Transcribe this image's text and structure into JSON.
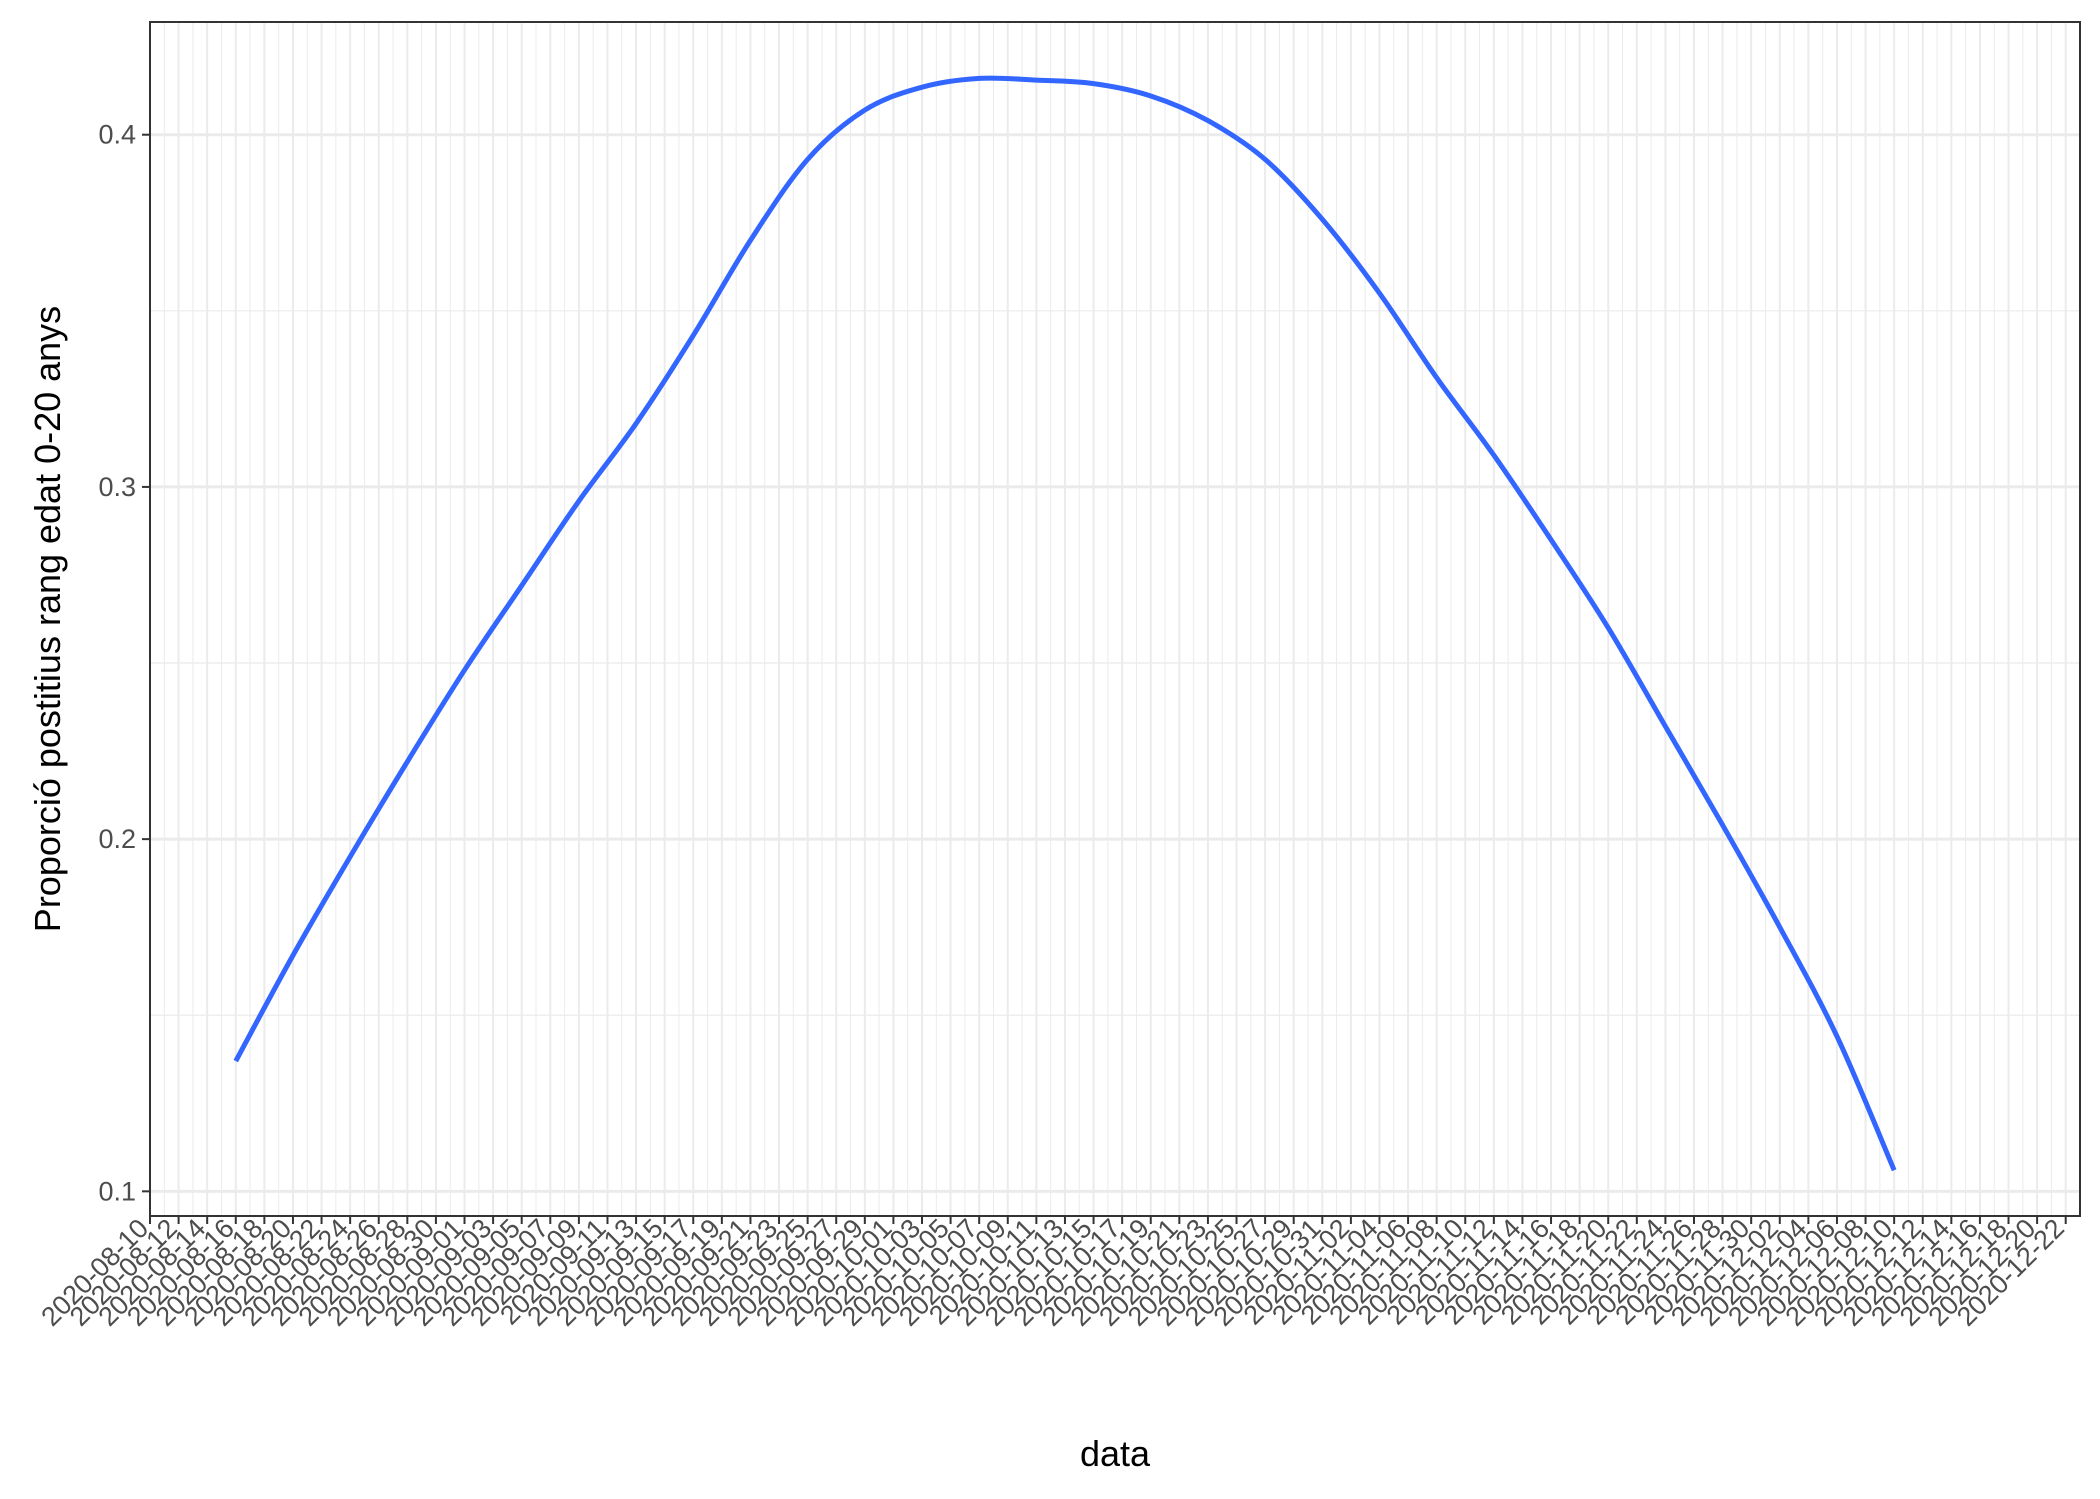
{
  "chart_data": {
    "type": "line",
    "title": "",
    "xlabel": "data",
    "ylabel": "Proporció postitius rang edat 0-20 anys",
    "xlim": [
      "2020-08-10",
      "2020-12-23"
    ],
    "ylim": [
      0.093,
      0.432
    ],
    "y_ticks": [
      0.1,
      0.2,
      0.3,
      0.4
    ],
    "y_tick_labels": [
      "0.1",
      "0.2",
      "0.3",
      "0.4"
    ],
    "x_tick_labels": [
      "2020-08-10",
      "2020-08-12",
      "2020-08-14",
      "2020-08-16",
      "2020-08-18",
      "2020-08-20",
      "2020-08-22",
      "2020-08-24",
      "2020-08-26",
      "2020-08-28",
      "2020-08-30",
      "2020-09-01",
      "2020-09-03",
      "2020-09-05",
      "2020-09-07",
      "2020-09-09",
      "2020-09-11",
      "2020-09-13",
      "2020-09-15",
      "2020-09-17",
      "2020-09-19",
      "2020-09-21",
      "2020-09-23",
      "2020-09-25",
      "2020-09-27",
      "2020-09-29",
      "2020-10-01",
      "2020-10-03",
      "2020-10-05",
      "2020-10-07",
      "2020-10-09",
      "2020-10-11",
      "2020-10-13",
      "2020-10-15",
      "2020-10-17",
      "2020-10-19",
      "2020-10-21",
      "2020-10-23",
      "2020-10-25",
      "2020-10-27",
      "2020-10-29",
      "2020-10-31",
      "2020-11-02",
      "2020-11-04",
      "2020-11-06",
      "2020-11-08",
      "2020-11-10",
      "2020-11-12",
      "2020-11-14",
      "2020-11-16",
      "2020-11-18",
      "2020-11-20",
      "2020-11-22",
      "2020-11-24",
      "2020-11-26",
      "2020-11-28",
      "2020-11-30",
      "2020-12-02",
      "2020-12-04",
      "2020-12-06",
      "2020-12-08",
      "2020-12-10",
      "2020-12-12",
      "2020-12-14",
      "2020-12-16",
      "2020-12-18",
      "2020-12-20",
      "2020-12-22"
    ],
    "grid": true,
    "series": [
      {
        "color": "#3366FF",
        "points": [
          {
            "x": "2020-08-16",
            "y": 0.137
          },
          {
            "x": "2020-08-20",
            "y": 0.167
          },
          {
            "x": "2020-08-24",
            "y": 0.195
          },
          {
            "x": "2020-08-28",
            "y": 0.222
          },
          {
            "x": "2020-09-01",
            "y": 0.248
          },
          {
            "x": "2020-09-05",
            "y": 0.272
          },
          {
            "x": "2020-09-09",
            "y": 0.296
          },
          {
            "x": "2020-09-13",
            "y": 0.318
          },
          {
            "x": "2020-09-17",
            "y": 0.343
          },
          {
            "x": "2020-09-21",
            "y": 0.37
          },
          {
            "x": "2020-09-25",
            "y": 0.393
          },
          {
            "x": "2020-09-29",
            "y": 0.407
          },
          {
            "x": "2020-10-03",
            "y": 0.4135
          },
          {
            "x": "2020-10-07",
            "y": 0.416
          },
          {
            "x": "2020-10-11",
            "y": 0.4155
          },
          {
            "x": "2020-10-15",
            "y": 0.4145
          },
          {
            "x": "2020-10-19",
            "y": 0.411
          },
          {
            "x": "2020-10-23",
            "y": 0.404
          },
          {
            "x": "2020-10-27",
            "y": 0.393
          },
          {
            "x": "2020-10-31",
            "y": 0.376
          },
          {
            "x": "2020-11-04",
            "y": 0.355
          },
          {
            "x": "2020-11-08",
            "y": 0.331
          },
          {
            "x": "2020-11-12",
            "y": 0.309
          },
          {
            "x": "2020-11-16",
            "y": 0.285
          },
          {
            "x": "2020-11-20",
            "y": 0.26
          },
          {
            "x": "2020-11-24",
            "y": 0.232
          },
          {
            "x": "2020-11-28",
            "y": 0.204
          },
          {
            "x": "2020-12-02",
            "y": 0.175
          },
          {
            "x": "2020-12-06",
            "y": 0.144
          },
          {
            "x": "2020-12-10",
            "y": 0.106
          }
        ]
      }
    ]
  }
}
